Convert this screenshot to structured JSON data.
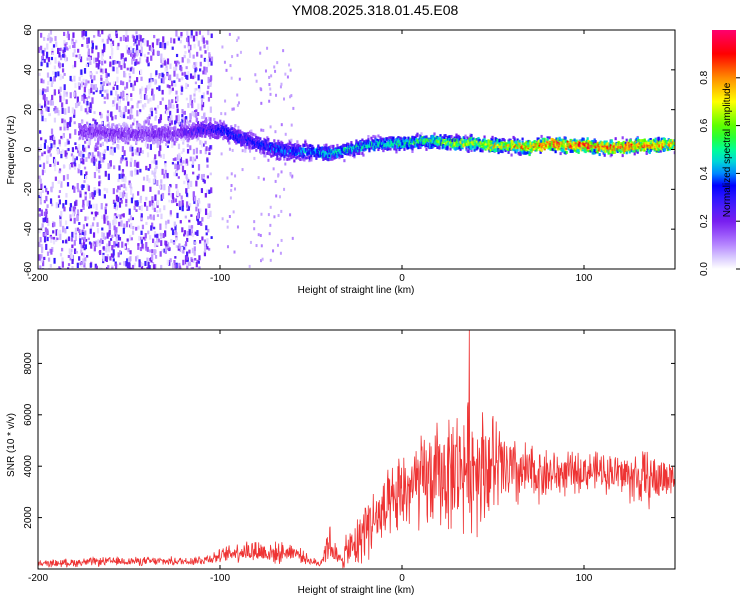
{
  "title": "YM08.2025.318.01.45.E08",
  "colors": {
    "snr_line": "#ee3333",
    "colormap": [
      "#ffffff",
      "#d8c8ff",
      "#8a2be2",
      "#4020ff",
      "#0000ff",
      "#00c8ff",
      "#00ff80",
      "#40ff00",
      "#ffff00",
      "#ff8000",
      "#ff0000",
      "#ff0070"
    ]
  },
  "chart_data": [
    {
      "type": "heatmap",
      "name": "spectrogram",
      "xlabel": "Height of straight line (km)",
      "ylabel": "Frequency (Hz)",
      "xlim": [
        -200,
        150
      ],
      "ylim": [
        -60,
        60
      ],
      "xticks": [
        "-200",
        "-100",
        "0",
        "100"
      ],
      "yticks": [
        "-60",
        "-40",
        "-20",
        "0",
        "20",
        "40",
        "60"
      ],
      "colorbar": {
        "label": "Normalized spectral amplitude",
        "range": [
          0,
          1
        ],
        "ticks": [
          "0.0",
          "0.2",
          "0.4",
          "0.6",
          "0.8"
        ]
      },
      "ridge": {
        "x": [
          -175,
          -150,
          -125,
          -110,
          -100,
          -90,
          -80,
          -70,
          -60,
          -50,
          -40,
          -30,
          -20,
          -10,
          0,
          10,
          20,
          30,
          40,
          50,
          60,
          70,
          80,
          90,
          100,
          110,
          120,
          130,
          140,
          150
        ],
        "frequency_hz": [
          9,
          8,
          8,
          10,
          10,
          6,
          3,
          0,
          -1,
          -1,
          -2,
          0,
          2,
          3,
          3,
          4,
          4,
          3,
          3,
          2,
          2,
          1,
          3,
          2,
          2,
          1,
          1,
          2,
          2,
          3
        ],
        "peak_amplitude": [
          0.2,
          0.2,
          0.22,
          0.3,
          0.35,
          0.35,
          0.35,
          0.4,
          0.4,
          0.45,
          0.5,
          0.5,
          0.5,
          0.55,
          0.55,
          0.6,
          0.6,
          0.7,
          0.7,
          0.75,
          0.8,
          0.85,
          0.95,
          0.9,
          0.95,
          0.95,
          0.9,
          0.9,
          0.85,
          0.8
        ]
      }
    },
    {
      "type": "line",
      "name": "snr",
      "xlabel": "Height of straight line (km)",
      "ylabel": "SNR (10 * v/v)",
      "xlim": [
        -200,
        150
      ],
      "ylim": [
        0,
        9300
      ],
      "xticks": [
        "-200",
        "-100",
        "0",
        "100"
      ],
      "yticks": [
        "2000",
        "4000",
        "6000",
        "8000"
      ],
      "envelope": {
        "x": [
          -200,
          -180,
          -160,
          -140,
          -120,
          -110,
          -100,
          -90,
          -80,
          -70,
          -60,
          -50,
          -45,
          -40,
          -35,
          -30,
          -25,
          -20,
          -15,
          -10,
          -5,
          0,
          10,
          20,
          30,
          40,
          50,
          60,
          70,
          80,
          90,
          100,
          110,
          120,
          130,
          140,
          150
        ],
        "mean": [
          200,
          250,
          300,
          300,
          300,
          350,
          500,
          700,
          700,
          600,
          700,
          300,
          200,
          1100,
          300,
          700,
          900,
          1700,
          1900,
          2100,
          2400,
          3000,
          3300,
          3600,
          3900,
          4100,
          4000,
          3700,
          3700,
          3700,
          3700,
          3800,
          3800,
          3700,
          3500,
          3500,
          3600
        ],
        "spread": [
          150,
          200,
          200,
          200,
          200,
          250,
          300,
          500,
          600,
          500,
          400,
          200,
          150,
          1000,
          400,
          800,
          1200,
          1500,
          1600,
          1700,
          1800,
          2000,
          2200,
          2500,
          2800,
          3000,
          2500,
          1800,
          1400,
          1200,
          1000,
          900,
          900,
          1000,
          1400,
          1200,
          800
        ]
      },
      "peak": {
        "x": 37,
        "y": 9300
      }
    }
  ]
}
